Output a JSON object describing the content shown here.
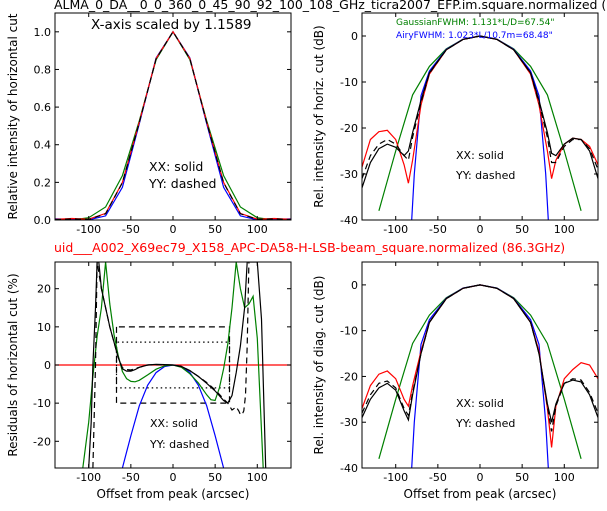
{
  "figure": {
    "top_title": "ALMA_0_DA__0_0_360_0_45_90_92_100_108_GHz_ticra2007_EFP.im.square.normalized (",
    "mid_title": "uid___A002_X69ec79_X158_APC-DA58-H-LSB-beam_square.normalized (86.3GHz)",
    "mid_title_color": "#ff0000"
  },
  "colors": {
    "xx": "#ff0000",
    "yy": "#000000",
    "gaussian": "#008000",
    "airy": "#0000ff",
    "zero_line": "#ff0000"
  },
  "chart_data": [
    {
      "id": "p1",
      "type": "line",
      "title": "",
      "annotation": "X-axis scaled by 1.1589",
      "xlabel": "",
      "ylabel": "Relative intensity of horizontal cut",
      "xlim": [
        -140,
        140
      ],
      "ylim": [
        0,
        1.1
      ],
      "xticks": [
        -100,
        -50,
        0,
        50,
        100
      ],
      "yticks": [
        0.0,
        0.2,
        0.4,
        0.6,
        0.8,
        1.0
      ],
      "yticklabels": [
        "0.0",
        "0.2",
        "0.4",
        "0.6",
        "0.8",
        "1.0"
      ],
      "legend_lines": [
        "XX: solid",
        "YY: dashed"
      ],
      "series": [
        {
          "color": "#008000",
          "style": "solid",
          "x": [
            -140,
            -120,
            -100,
            -80,
            -60,
            -40,
            -20,
            0,
            20,
            40,
            60,
            80,
            100,
            120,
            140
          ],
          "y": [
            0,
            0,
            0.012,
            0.069,
            0.236,
            0.527,
            0.852,
            1.0,
            0.852,
            0.527,
            0.236,
            0.069,
            0.012,
            0,
            0
          ]
        },
        {
          "color": "#0000ff",
          "style": "solid",
          "x": [
            -140,
            -120,
            -100,
            -80,
            -60,
            -40,
            -20,
            0,
            20,
            40,
            60,
            80,
            100,
            120,
            140
          ],
          "y": [
            0.006,
            0.003,
            0.001,
            0.022,
            0.174,
            0.512,
            0.861,
            1.0,
            0.861,
            0.512,
            0.174,
            0.022,
            0.001,
            0.003,
            0.006
          ]
        },
        {
          "color": "#ff0000",
          "style": "solid",
          "x": [
            -140,
            -120,
            -100,
            -80,
            -60,
            -40,
            -20,
            0,
            20,
            40,
            60,
            80,
            100,
            120,
            140
          ],
          "y": [
            0.003,
            0.008,
            0.004,
            0.035,
            0.2,
            0.52,
            0.858,
            1.0,
            0.858,
            0.52,
            0.2,
            0.035,
            0.004,
            0.008,
            0.003
          ]
        },
        {
          "color": "#000000",
          "style": "dashed",
          "x": [
            -140,
            -120,
            -100,
            -80,
            -60,
            -40,
            -20,
            0,
            20,
            40,
            60,
            80,
            100,
            120,
            140
          ],
          "y": [
            0.002,
            0.006,
            0.003,
            0.033,
            0.198,
            0.518,
            0.856,
            1.0,
            0.856,
            0.518,
            0.198,
            0.033,
            0.003,
            0.006,
            0.002
          ]
        }
      ]
    },
    {
      "id": "p2",
      "type": "line",
      "title": "",
      "annotations": [
        {
          "text": "GaussianFWHM: 1.131*L/D=67.54\"",
          "color": "#008000"
        },
        {
          "text": "AiryFWHM: 1.023*L/10.7m=68.48\"",
          "color": "#0000ff"
        }
      ],
      "xlabel": "",
      "ylabel": "Rel. intensity of horiz. cut (dB)",
      "xlim": [
        -140,
        140
      ],
      "ylim": [
        -40,
        5
      ],
      "xticks": [
        -100,
        -50,
        0,
        50,
        100
      ],
      "yticks": [
        -40,
        -30,
        -20,
        -10,
        0
      ],
      "legend_lines": [
        "XX: solid",
        "YY: dashed"
      ],
      "series": [
        {
          "color": "#008000",
          "style": "solid",
          "x": [
            -120,
            -100,
            -80,
            -60,
            -40,
            -20,
            0,
            20,
            40,
            60,
            80,
            100,
            120
          ],
          "y": [
            -38,
            -25,
            -12.8,
            -6.6,
            -2.8,
            -0.7,
            0,
            -0.7,
            -2.8,
            -6.6,
            -12.8,
            -25,
            -38
          ]
        },
        {
          "color": "#0000ff",
          "style": "solid",
          "x": [
            -81,
            -78,
            -70,
            -60,
            -40,
            -20,
            0,
            20,
            40,
            60,
            70,
            78,
            81
          ],
          "y": [
            -40,
            -30,
            -13,
            -7.6,
            -2.9,
            -0.7,
            0,
            -0.7,
            -2.9,
            -7.6,
            -13,
            -30,
            -40
          ]
        },
        {
          "color": "#ff0000",
          "style": "solid",
          "x": [
            -140,
            -130,
            -120,
            -110,
            -100,
            -90,
            -85,
            -80,
            -70,
            -60,
            -40,
            -20,
            0,
            20,
            40,
            60,
            70,
            80,
            85,
            90,
            100,
            110,
            120,
            130,
            140
          ],
          "y": [
            -28.5,
            -22.5,
            -20.8,
            -20.5,
            -22.5,
            -28,
            -32,
            -27,
            -15,
            -8.3,
            -3,
            -0.75,
            0,
            -0.75,
            -3,
            -8.3,
            -15,
            -25,
            -31,
            -27,
            -23.5,
            -22.2,
            -22.5,
            -24,
            -28
          ]
        },
        {
          "color": "#000000",
          "style": "solid",
          "x": [
            -140,
            -130,
            -120,
            -110,
            -100,
            -90,
            -85,
            -80,
            -70,
            -60,
            -40,
            -20,
            0,
            20,
            40,
            60,
            70,
            80,
            85,
            90,
            100,
            110,
            120,
            130,
            140
          ],
          "y": [
            -33,
            -27.5,
            -24.5,
            -23.5,
            -24.2,
            -26,
            -25,
            -21,
            -14,
            -8,
            -3,
            -0.75,
            0,
            -0.75,
            -3,
            -8,
            -14,
            -21,
            -25.5,
            -26,
            -23.5,
            -22.2,
            -22.5,
            -25,
            -31
          ]
        },
        {
          "color": "#000000",
          "style": "dashed",
          "x": [
            -140,
            -130,
            -120,
            -110,
            -100,
            -90,
            -85,
            -80,
            -70,
            -60,
            -40,
            -20,
            0,
            20,
            40,
            60,
            70,
            80,
            85,
            90,
            100,
            110,
            120,
            130,
            140
          ],
          "y": [
            -31,
            -26,
            -23.5,
            -22.5,
            -23.5,
            -26,
            -27,
            -22,
            -14.5,
            -8.1,
            -3,
            -0.75,
            0,
            -0.75,
            -3,
            -8.1,
            -14.5,
            -22,
            -27.5,
            -27.5,
            -24,
            -22.5,
            -22.5,
            -24.5,
            -29
          ]
        }
      ]
    },
    {
      "id": "p3",
      "type": "line",
      "title": "",
      "xlabel": "Offset from peak (arcsec)",
      "ylabel": "Residuals of horizontal cut (%)",
      "xlim": [
        -140,
        140
      ],
      "ylim": [
        -27,
        27
      ],
      "xticks": [
        -100,
        -50,
        0,
        50,
        100
      ],
      "yticks": [
        -20,
        -10,
        0,
        10,
        20
      ],
      "legend_lines": [
        "XX: solid",
        "YY: dashed"
      ],
      "series": [
        {
          "color": "#ff0000",
          "style": "solid",
          "x": [
            -140,
            140
          ],
          "y": [
            0,
            0
          ]
        },
        {
          "color": "#000000",
          "style": "dashed",
          "x": [
            -67,
            -67,
            67,
            67,
            -67
          ],
          "y": [
            10,
            -10,
            -10,
            10,
            10
          ]
        },
        {
          "color": "#000000",
          "style": "dotted",
          "x": [
            -67,
            -67,
            67,
            67,
            -67
          ],
          "y": [
            6,
            -6,
            -6,
            6,
            6
          ]
        },
        {
          "color": "#0000ff",
          "style": "solid",
          "x": [
            -60,
            -50,
            -40,
            -30,
            -20,
            -10,
            0,
            10,
            20,
            30,
            40,
            50,
            60
          ],
          "y": [
            -27,
            -18.5,
            -10.7,
            -5.3,
            -2,
            -0.4,
            0,
            -0.4,
            -2,
            -5.3,
            -10.7,
            -18.5,
            -27
          ]
        },
        {
          "color": "#008000",
          "style": "solid",
          "x": [
            -107,
            -100,
            -95,
            -90,
            -85,
            -80,
            -75,
            -70,
            -65,
            -60,
            -55,
            -50,
            -45,
            -40,
            -30,
            -20,
            -10,
            0,
            10,
            20,
            30,
            40,
            45,
            50,
            55,
            60,
            65,
            70,
            75,
            80,
            85,
            90,
            95,
            100,
            107
          ],
          "y": [
            -27,
            -15,
            -3,
            7.5,
            15,
            27,
            16,
            8,
            2.5,
            -1.7,
            -3.6,
            -4.3,
            -4.4,
            -4,
            -2.6,
            -1.1,
            -0.2,
            0,
            -0.6,
            -2.3,
            -4.7,
            -7.8,
            -9.1,
            -9.3,
            -6,
            -1,
            5.5,
            15,
            27,
            20,
            15,
            16,
            18,
            7,
            -27
          ]
        },
        {
          "color": "#000000",
          "style": "solid",
          "x": [
            -100,
            -97,
            -95,
            -92,
            -90,
            -88,
            -85,
            -80,
            -75,
            -70,
            -65,
            -60,
            -55,
            -50,
            -45,
            -40,
            -30,
            -20,
            -10,
            0,
            10,
            20,
            30,
            40,
            50,
            60,
            65,
            70,
            75,
            80,
            85,
            88,
            90,
            92,
            95,
            97,
            100,
            105,
            110
          ],
          "y": [
            -27,
            -15,
            0,
            15,
            27,
            27,
            20,
            15,
            10,
            6,
            2,
            -1,
            -1.6,
            -1.6,
            -1.2,
            -0.6,
            0,
            0.15,
            0.1,
            0,
            -0.4,
            -1.5,
            -3,
            -4.8,
            -6.8,
            -9.3,
            -10,
            -8,
            -2,
            5,
            15,
            27,
            27,
            27,
            27,
            27,
            27,
            12,
            -27
          ]
        },
        {
          "color": "#000000",
          "style": "dashed",
          "x": [
            -95,
            -92,
            -90,
            -85,
            -80,
            -75,
            -70,
            -65,
            -60,
            -55,
            -50,
            -40,
            -30,
            -20,
            -10,
            0,
            10,
            20,
            30,
            40,
            50,
            60,
            65,
            70,
            75,
            78,
            80,
            82,
            84,
            86,
            88,
            90
          ],
          "y": [
            -27,
            0,
            27,
            20,
            15,
            10,
            6,
            2,
            -0.7,
            -1.2,
            -1.3,
            -0.6,
            0,
            0.1,
            0.05,
            0,
            -0.4,
            -1.5,
            -3,
            -4.6,
            -6.5,
            -8.9,
            -10,
            -11.8,
            -11,
            -12,
            -13,
            -13,
            -12,
            -8,
            5,
            27
          ]
        }
      ]
    },
    {
      "id": "p4",
      "type": "line",
      "title": "",
      "xlabel": "Offset from peak (arcsec)",
      "ylabel": "Rel. intensity of diag. cut (dB)",
      "xlim": [
        -140,
        140
      ],
      "ylim": [
        -40,
        5
      ],
      "xticks": [
        -100,
        -50,
        0,
        50,
        100
      ],
      "yticks": [
        -40,
        -30,
        -20,
        -10,
        0
      ],
      "legend_lines": [
        "XX: solid",
        "YY: dashed"
      ],
      "series": [
        {
          "color": "#008000",
          "style": "solid",
          "x": [
            -120,
            -100,
            -80,
            -60,
            -40,
            -20,
            0,
            20,
            40,
            60,
            80,
            100,
            120
          ],
          "y": [
            -38,
            -25,
            -12.8,
            -6.6,
            -2.8,
            -0.7,
            0,
            -0.7,
            -2.8,
            -6.6,
            -12.8,
            -25,
            -38
          ]
        },
        {
          "color": "#0000ff",
          "style": "solid",
          "x": [
            -81,
            -78,
            -70,
            -60,
            -40,
            -20,
            0,
            20,
            40,
            60,
            70,
            78,
            81
          ],
          "y": [
            -40,
            -30,
            -13,
            -7.6,
            -2.9,
            -0.7,
            0,
            -0.7,
            -2.9,
            -7.6,
            -13,
            -30,
            -40
          ]
        },
        {
          "color": "#ff0000",
          "style": "solid",
          "x": [
            -140,
            -130,
            -120,
            -110,
            -100,
            -90,
            -85,
            -80,
            -70,
            -60,
            -40,
            -20,
            0,
            20,
            40,
            60,
            70,
            80,
            85,
            90,
            100,
            110,
            120,
            130,
            140
          ],
          "y": [
            -27,
            -22,
            -19.5,
            -18.8,
            -20.5,
            -25,
            -26.5,
            -22,
            -14.5,
            -8.2,
            -3,
            -0.75,
            0,
            -0.75,
            -3,
            -8.2,
            -14.5,
            -27,
            -35.5,
            -26.5,
            -20.5,
            -18.5,
            -17,
            -17.5,
            -20.5
          ]
        },
        {
          "color": "#000000",
          "style": "solid",
          "x": [
            -140,
            -130,
            -120,
            -110,
            -100,
            -90,
            -85,
            -80,
            -70,
            -60,
            -40,
            -20,
            0,
            20,
            40,
            60,
            70,
            80,
            85,
            90,
            100,
            110,
            120,
            130,
            140
          ],
          "y": [
            -29,
            -25,
            -22.5,
            -21.5,
            -23,
            -27.5,
            -29.5,
            -24,
            -15,
            -8.2,
            -3,
            -0.75,
            0,
            -0.75,
            -3,
            -8.2,
            -15,
            -26,
            -30,
            -26,
            -21.5,
            -20.8,
            -21.2,
            -24,
            -29
          ]
        },
        {
          "color": "#000000",
          "style": "dashed",
          "x": [
            -140,
            -130,
            -120,
            -110,
            -100,
            -90,
            -85,
            -80,
            -70,
            -60,
            -40,
            -20,
            0,
            20,
            40,
            60,
            70,
            80,
            85,
            90,
            100,
            110,
            120,
            130,
            140
          ],
          "y": [
            -28,
            -24,
            -21.5,
            -21,
            -22.5,
            -27,
            -28.5,
            -23.5,
            -15,
            -8.2,
            -3,
            -0.75,
            0,
            -0.75,
            -3,
            -8.2,
            -15,
            -26.5,
            -32,
            -26.5,
            -21.5,
            -20.5,
            -20.8,
            -23.5,
            -28
          ]
        }
      ]
    }
  ]
}
